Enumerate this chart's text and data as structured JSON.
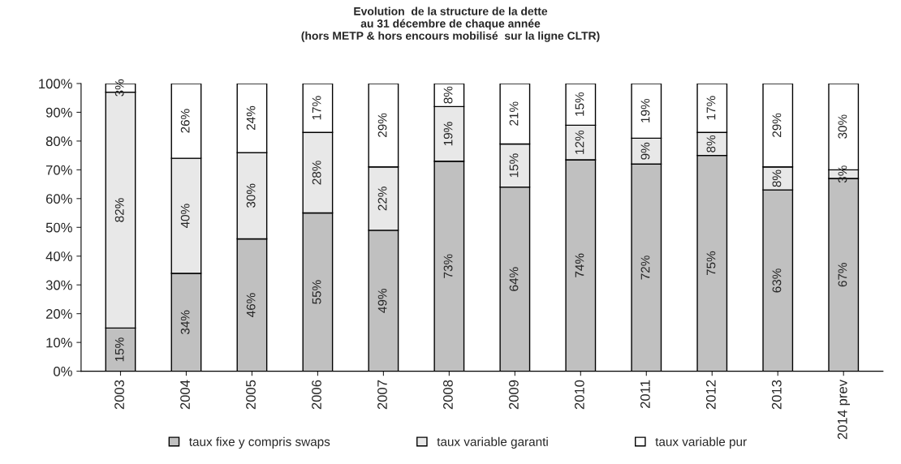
{
  "chart_data": {
    "type": "bar",
    "stacked": true,
    "title": "Evolution  de la structure de la dette\nau 31 décembre de chaque année\n(hors METP & hors encours mobilisé  sur la ligne CLTR)",
    "categories": [
      "2003",
      "2004",
      "2005",
      "2006",
      "2007",
      "2008",
      "2009",
      "2010",
      "2011",
      "2012",
      "2013",
      "2014 prev"
    ],
    "series": [
      {
        "name": "taux fixe y compris swaps",
        "color": "#c0c0c0",
        "values": [
          15,
          34,
          46,
          55,
          49,
          73,
          64,
          73.5,
          72,
          75,
          63,
          67
        ],
        "value_labels": [
          "15%",
          "34%",
          "46%",
          "55%",
          "49%",
          "73%",
          "64%",
          "74%",
          "72%",
          "75%",
          "63%",
          "67%"
        ]
      },
      {
        "name": "taux variable garanti",
        "color": "#e8e8e8",
        "values": [
          82,
          40,
          30,
          28,
          22,
          19,
          15,
          12,
          9,
          8,
          8,
          3
        ],
        "value_labels": [
          "82%",
          "40%",
          "30%",
          "28%",
          "22%",
          "19%",
          "15%",
          "12%",
          "9%",
          "8%",
          "8%",
          "3%"
        ]
      },
      {
        "name": "taux variable pur",
        "color": "#ffffff",
        "values": [
          3,
          26,
          24,
          17,
          29,
          8,
          21,
          14.5,
          19,
          17,
          29,
          30
        ],
        "value_labels": [
          "3%",
          "26%",
          "24%",
          "17%",
          "29%",
          "8%",
          "21%",
          "15%",
          "19%",
          "17%",
          "29%",
          "30%"
        ]
      }
    ],
    "ylim": [
      0,
      100
    ],
    "yticks": [
      {
        "value": 0,
        "label": "0%"
      },
      {
        "value": 10,
        "label": "10%"
      },
      {
        "value": 20,
        "label": "20%"
      },
      {
        "value": 30,
        "label": "30%"
      },
      {
        "value": 40,
        "label": "40%"
      },
      {
        "value": 50,
        "label": "50%"
      },
      {
        "value": 60,
        "label": "60%"
      },
      {
        "value": 70,
        "label": "70%"
      },
      {
        "value": 80,
        "label": "80%"
      },
      {
        "value": 90,
        "label": "90%"
      },
      {
        "value": 100,
        "label": "100%"
      }
    ],
    "grid": false,
    "legend": "bottom"
  }
}
